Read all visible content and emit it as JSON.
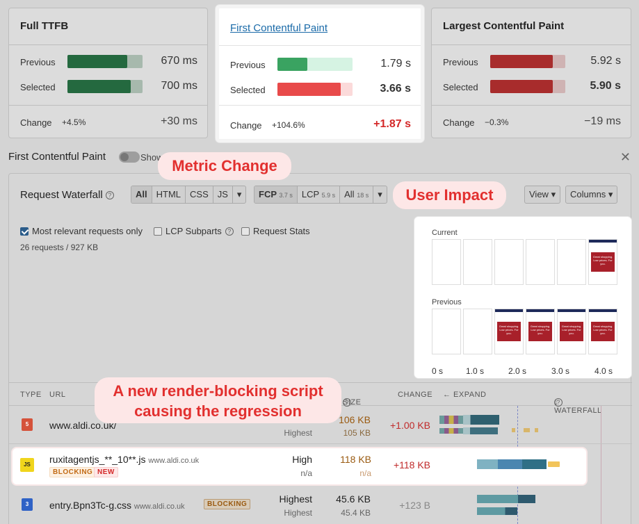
{
  "cards": {
    "ttfb": {
      "title": "Full TTFB",
      "previous_label": "Previous",
      "previous_value": "670 ms",
      "previous_fill": 0.8,
      "selected_label": "Selected",
      "selected_value": "700 ms",
      "selected_fill": 0.84,
      "change_label": "Change",
      "change_pct": "+4.5%",
      "change_value": "+30 ms"
    },
    "fcp": {
      "title": "First Contentful Paint",
      "previous_label": "Previous",
      "previous_value": "1.79 s",
      "previous_fill": 0.4,
      "selected_label": "Selected",
      "selected_value": "3.66 s",
      "selected_fill": 0.84,
      "change_label": "Change",
      "change_pct": "+104.6%",
      "change_value": "+1.87 s"
    },
    "lcp": {
      "title": "Largest Contentful Paint",
      "previous_label": "Previous",
      "previous_value": "5.92 s",
      "previous_fill": 0.83,
      "selected_label": "Selected",
      "selected_value": "5.90 s",
      "selected_fill": 0.83,
      "change_label": "Change",
      "change_pct": "−0.3%",
      "change_value": "−19 ms"
    }
  },
  "section": {
    "title": "First Contentful Paint",
    "show_label": "Show"
  },
  "waterfall": {
    "title": "Request Waterfall",
    "type_filters": [
      "All",
      "HTML",
      "CSS",
      "JS"
    ],
    "metric_filters": [
      {
        "label": "FCP",
        "time": "3.7 s"
      },
      {
        "label": "LCP",
        "time": "5.9 s"
      },
      {
        "label": "All",
        "time": "18 s"
      }
    ],
    "view_label": "View",
    "columns_label": "Columns",
    "options": [
      "Most relevant requests only",
      "LCP Subparts",
      "Request Stats"
    ],
    "summary": "26 requests / 927 KB"
  },
  "filmstrip": {
    "current_label": "Current",
    "previous_label": "Previous",
    "frame_text": "Great shopping. Low prices. For you.",
    "current_frames": [
      false,
      false,
      false,
      false,
      false,
      true
    ],
    "previous_frames": [
      false,
      false,
      true,
      true,
      true,
      true
    ],
    "ticks": [
      "0 s",
      "1.0 s",
      "2.0 s",
      "3.0 s",
      "4.0 s"
    ]
  },
  "table": {
    "headers": {
      "type": "TYPE",
      "url": "URL",
      "size": "SIZE",
      "change": "CHANGE",
      "expand": "← EXPAND",
      "waterfall": "↓ WATERFALL"
    },
    "rows": [
      {
        "icon": "5",
        "url": "www.aldi.co.uk/",
        "domain": "",
        "priority": "",
        "priority_prev": "Highest",
        "size": "106 KB",
        "size_prev": "105 KB",
        "change": "+1.00 KB"
      },
      {
        "icon": "JS",
        "url": "ruxitagentjs_**_10**.js",
        "domain": "www.aldi.co.uk",
        "priority": "High",
        "priority_prev": "n/a",
        "size": "118 KB",
        "size_prev": "n/a",
        "change": "+118 KB",
        "tags": [
          "BLOCKING",
          "NEW"
        ]
      },
      {
        "icon": "3",
        "url": "entry.Bpn3Tc-g.css",
        "domain": "www.aldi.co.uk",
        "priority": "Highest",
        "priority_prev": "Highest",
        "size": "45.6 KB",
        "size_prev": "45.4 KB",
        "change": "+123 B",
        "tags": [
          "BLOCKING"
        ]
      }
    ]
  },
  "callouts": {
    "metric_change": "Metric Change",
    "user_impact": "User Impact",
    "script_line1": "A new render-blocking script",
    "script_line2": "causing the regression"
  },
  "colors": {
    "green": "#2e7d4f",
    "red": "#e84a4a",
    "callout": "#e2302f"
  }
}
